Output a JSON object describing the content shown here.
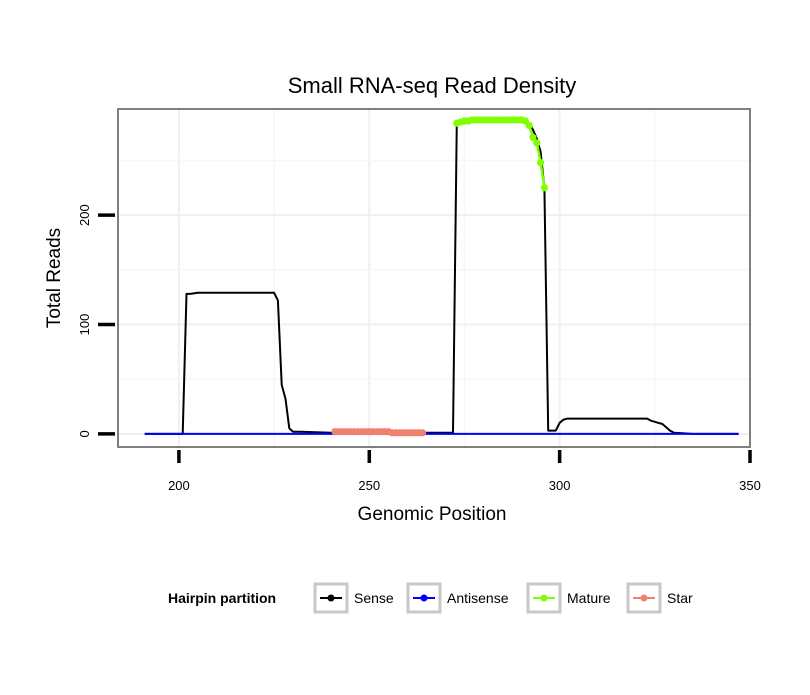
{
  "chart_data": {
    "type": "line",
    "title": "Small RNA-seq Read Density",
    "xlabel": "Genomic Position",
    "ylabel": "Total Reads",
    "xlim": [
      184,
      350
    ],
    "ylim": [
      -12,
      297
    ],
    "x_ticks": [
      200,
      250,
      300,
      350
    ],
    "y_ticks": [
      0,
      100,
      200
    ],
    "grid": true,
    "legend": {
      "title": "Hairpin partition",
      "placement": "bottom",
      "entries": [
        "Sense",
        "Antisense",
        "Mature",
        "Star"
      ]
    },
    "series": [
      {
        "name": "Sense",
        "color": "#000000",
        "markers": false,
        "x": [
          191,
          201,
          202,
          203,
          205,
          210,
          215,
          220,
          225,
          226,
          227,
          228,
          229,
          230,
          232,
          240,
          250,
          260,
          270,
          272,
          273,
          274,
          276,
          280,
          285,
          290,
          292,
          293,
          294,
          295,
          296,
          297,
          298,
          299,
          300,
          301,
          302,
          305,
          310,
          315,
          320,
          323,
          324,
          325,
          326,
          327,
          328,
          329,
          330,
          335,
          340,
          347
        ],
        "y": [
          0,
          0,
          128,
          128,
          129,
          129,
          129,
          129,
          129,
          122,
          45,
          32,
          5,
          2,
          2,
          1,
          1,
          1,
          1,
          1,
          285,
          286,
          287,
          287,
          287,
          287,
          284,
          278,
          270,
          258,
          225,
          3,
          3,
          3,
          10,
          13,
          14,
          14,
          14,
          14,
          14,
          14,
          12,
          11,
          10,
          9,
          6,
          3,
          1,
          0,
          0,
          0
        ]
      },
      {
        "name": "Antisense",
        "color": "#0000ff",
        "markers": false,
        "x": [
          191,
          347
        ],
        "y": [
          0,
          0
        ]
      },
      {
        "name": "Mature",
        "color": "#7fff00",
        "markers": true,
        "x": [
          273,
          274,
          275,
          276,
          277,
          278,
          279,
          280,
          281,
          282,
          283,
          284,
          285,
          286,
          287,
          288,
          289,
          290,
          291,
          292,
          293,
          294,
          295,
          296
        ],
        "y": [
          284,
          285,
          286,
          286,
          287,
          287,
          287,
          287,
          287,
          287,
          287,
          287,
          287,
          287,
          287,
          287,
          287,
          287,
          286,
          282,
          271,
          266,
          248,
          225
        ]
      },
      {
        "name": "Star",
        "color": "#f08070",
        "markers": true,
        "x": [
          241,
          242,
          243,
          244,
          245,
          246,
          247,
          248,
          249,
          250,
          251,
          252,
          253,
          254,
          255,
          256,
          257,
          258,
          259,
          260,
          261,
          262,
          263,
          264
        ],
        "y": [
          2,
          2,
          2,
          2,
          2,
          2,
          2,
          2,
          2,
          2,
          2,
          2,
          2,
          2,
          2,
          1,
          1,
          1,
          1,
          1,
          1,
          1,
          1,
          1
        ]
      }
    ]
  }
}
